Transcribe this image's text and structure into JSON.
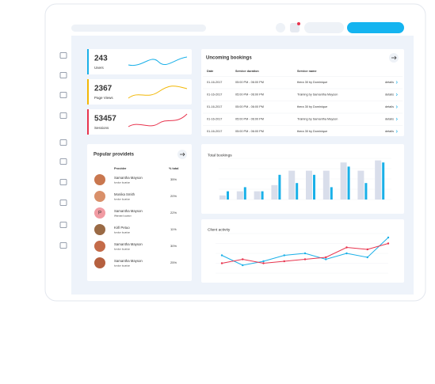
{
  "kpis": [
    {
      "value": "243",
      "label": "Users",
      "color": "#1ab0e8"
    },
    {
      "value": "2367",
      "label": "Page Views",
      "color": "#f2b705"
    },
    {
      "value": "53457",
      "label": "Sessions",
      "color": "#e8344e"
    }
  ],
  "bookings": {
    "title": "Uncoming bookings",
    "columns": [
      "Date",
      "Service duration",
      "Service name"
    ],
    "action": "details",
    "rows": [
      [
        "01-16-2017",
        "05:00 PM - 06:00 PM",
        "thera 30 by Dominique"
      ],
      [
        "01-16-2017",
        "05:00 PM - 06:00 PM",
        "Training by Samantha Mayson"
      ],
      [
        "01-16-2017",
        "05:00 PM - 06:00 PM",
        "thera 30 by Dominique"
      ],
      [
        "01-16-2017",
        "05:00 PM - 06:00 PM",
        "Training by Samantha Mayson"
      ],
      [
        "01-16-2017",
        "05:00 PM - 06:00 PM",
        "thera 30 by Dominique"
      ]
    ]
  },
  "providers": {
    "title": "Popular providets",
    "columns": [
      "Provider",
      "% total"
    ],
    "rows": [
      {
        "name": "Samantha Mayson",
        "location": "london location",
        "share": "35%"
      },
      {
        "name": "Monika Smith",
        "location": "london location",
        "share": "20%"
      },
      {
        "name": "Samantha Mayson",
        "location": "Warsaw location",
        "share": "22%",
        "avatar": "P"
      },
      {
        "name": "Kirll Petuo",
        "location": "london location",
        "share": "11%"
      },
      {
        "name": "Samantha Mayson",
        "location": "london location",
        "share": "30%"
      },
      {
        "name": "Samantha Mayson",
        "location": "london location",
        "share": "25%"
      }
    ]
  },
  "total_bookings": {
    "type": "bar",
    "title": "Total bookings",
    "ylim": [
      0,
      100
    ],
    "series": [
      {
        "color": "#d9deeb",
        "values": [
          10,
          20,
          20,
          35,
          70,
          70,
          70,
          90,
          70,
          95
        ]
      },
      {
        "color": "#1ab0e8",
        "values": [
          20,
          30,
          20,
          60,
          40,
          60,
          30,
          80,
          40,
          90
        ]
      }
    ]
  },
  "client_activity": {
    "type": "line",
    "title": "Client activity",
    "ylim": [
      0,
      100
    ],
    "series": [
      {
        "color": "#1ab0e8",
        "values": [
          45,
          20,
          30,
          45,
          50,
          35,
          50,
          40,
          90
        ]
      },
      {
        "color": "#e8344e",
        "values": [
          25,
          35,
          25,
          30,
          35,
          40,
          65,
          60,
          75
        ]
      }
    ]
  }
}
